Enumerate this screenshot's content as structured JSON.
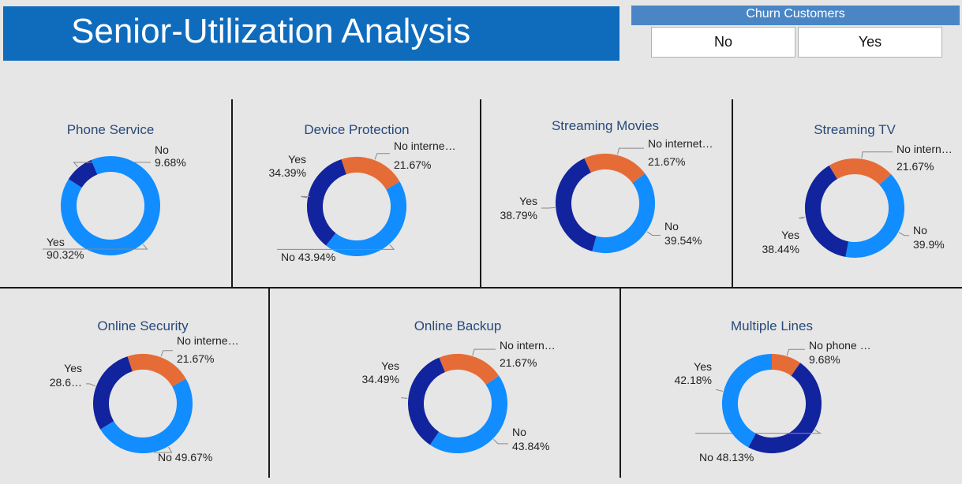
{
  "header": {
    "title": "Senior-Utilization Analysis"
  },
  "slicer": {
    "title": "Churn Customers",
    "options": [
      "No",
      "Yes"
    ]
  },
  "colors": {
    "yes": "#12239e",
    "no": "#118dff",
    "other": "#e66c37"
  },
  "chart_data": [
    {
      "type": "pie",
      "title": "Phone Service",
      "donut": true,
      "slices": [
        {
          "category": "No",
          "value": 9.68,
          "label": "9.68%",
          "color": "#12239e"
        },
        {
          "category": "Yes",
          "value": 90.32,
          "label": "90.32%",
          "color": "#118dff"
        }
      ]
    },
    {
      "type": "pie",
      "title": "Device Protection",
      "donut": true,
      "slices": [
        {
          "category": "No interne…",
          "value": 21.67,
          "label": "21.67%",
          "color": "#e66c37"
        },
        {
          "category": "No",
          "value": 43.94,
          "label": "43.94%",
          "color": "#118dff"
        },
        {
          "category": "Yes",
          "value": 34.39,
          "label": "34.39%",
          "color": "#12239e"
        }
      ]
    },
    {
      "type": "pie",
      "title": "Streaming Movies",
      "donut": true,
      "slices": [
        {
          "category": "No internet…",
          "value": 21.67,
          "label": "21.67%",
          "color": "#e66c37"
        },
        {
          "category": "No",
          "value": 39.54,
          "label": "39.54%",
          "color": "#118dff"
        },
        {
          "category": "Yes",
          "value": 38.79,
          "label": "38.79%",
          "color": "#12239e"
        }
      ]
    },
    {
      "type": "pie",
      "title": "Streaming TV",
      "donut": true,
      "slices": [
        {
          "category": "No intern…",
          "value": 21.67,
          "label": "21.67%",
          "color": "#e66c37"
        },
        {
          "category": "No",
          "value": 39.9,
          "label": "39.9%",
          "color": "#118dff"
        },
        {
          "category": "Yes",
          "value": 38.44,
          "label": "38.44%",
          "color": "#12239e"
        }
      ]
    },
    {
      "type": "pie",
      "title": "Online Security",
      "donut": true,
      "slices": [
        {
          "category": "No interne…",
          "value": 21.67,
          "label": "21.67%",
          "color": "#e66c37"
        },
        {
          "category": "No",
          "value": 49.67,
          "label": "49.67%",
          "color": "#118dff"
        },
        {
          "category": "Yes",
          "value": 28.66,
          "label": "28.6…",
          "color": "#12239e"
        }
      ]
    },
    {
      "type": "pie",
      "title": "Online Backup",
      "donut": true,
      "slices": [
        {
          "category": "No intern…",
          "value": 21.67,
          "label": "21.67%",
          "color": "#e66c37"
        },
        {
          "category": "No",
          "value": 43.84,
          "label": "43.84%",
          "color": "#118dff"
        },
        {
          "category": "Yes",
          "value": 34.49,
          "label": "34.49%",
          "color": "#12239e"
        }
      ]
    },
    {
      "type": "pie",
      "title": "Multiple Lines",
      "donut": true,
      "slices": [
        {
          "category": "No phone …",
          "value": 9.68,
          "label": "9.68%",
          "color": "#e66c37"
        },
        {
          "category": "No",
          "value": 48.13,
          "label": "48.13%",
          "color": "#12239e"
        },
        {
          "category": "Yes",
          "value": 42.18,
          "label": "42.18%",
          "color": "#118dff"
        }
      ]
    }
  ]
}
